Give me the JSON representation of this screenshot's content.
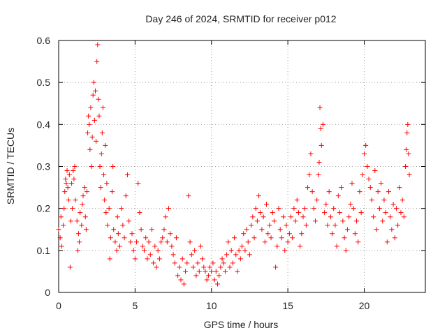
{
  "chart_data": {
    "type": "scatter",
    "title": "Day 246 of 2024, SRMTID for receiver p012",
    "xlabel": "GPS time / hours",
    "ylabel": "SRMTID / TECUs",
    "xlim": [
      0,
      24
    ],
    "ylim": [
      0,
      0.6
    ],
    "xticks": [
      0,
      5,
      10,
      15,
      20
    ],
    "xtick_labels": [
      "0",
      "5",
      "10",
      "15",
      "20"
    ],
    "yticks": [
      0,
      0.1,
      0.2,
      0.3,
      0.4,
      0.5,
      0.6
    ],
    "ytick_labels": [
      "0",
      "0.1",
      "0.2",
      "0.3",
      "0.4",
      "0.5",
      "0.6"
    ],
    "grid": true,
    "marker": "plus",
    "color": "#ff0000",
    "series": [
      {
        "name": "SRMTID",
        "points": [
          [
            0.0,
            0.15
          ],
          [
            0.1,
            0.13
          ],
          [
            0.15,
            0.18
          ],
          [
            0.2,
            0.11
          ],
          [
            0.3,
            0.16
          ],
          [
            0.35,
            0.2
          ],
          [
            0.4,
            0.24
          ],
          [
            0.45,
            0.27
          ],
          [
            0.5,
            0.26
          ],
          [
            0.55,
            0.29
          ],
          [
            0.6,
            0.25
          ],
          [
            0.65,
            0.22
          ],
          [
            0.7,
            0.28
          ],
          [
            0.75,
            0.06
          ],
          [
            0.8,
            0.17
          ],
          [
            0.85,
            0.26
          ],
          [
            0.9,
            0.2
          ],
          [
            0.95,
            0.29
          ],
          [
            1.0,
            0.27
          ],
          [
            1.05,
            0.3
          ],
          [
            1.1,
            0.22
          ],
          [
            1.2,
            0.17
          ],
          [
            1.25,
            0.1
          ],
          [
            1.3,
            0.14
          ],
          [
            1.35,
            0.12
          ],
          [
            1.4,
            0.19
          ],
          [
            1.5,
            0.16
          ],
          [
            1.55,
            0.21
          ],
          [
            1.6,
            0.23
          ],
          [
            1.7,
            0.25
          ],
          [
            1.75,
            0.18
          ],
          [
            1.8,
            0.15
          ],
          [
            1.85,
            0.24
          ],
          [
            1.9,
            0.38
          ],
          [
            1.95,
            0.42
          ],
          [
            2.0,
            0.4
          ],
          [
            2.05,
            0.34
          ],
          [
            2.1,
            0.44
          ],
          [
            2.15,
            0.3
          ],
          [
            2.2,
            0.37
          ],
          [
            2.25,
            0.47
          ],
          [
            2.3,
            0.5
          ],
          [
            2.35,
            0.41
          ],
          [
            2.4,
            0.48
          ],
          [
            2.45,
            0.36
          ],
          [
            2.5,
            0.55
          ],
          [
            2.55,
            0.59
          ],
          [
            2.6,
            0.46
          ],
          [
            2.65,
            0.42
          ],
          [
            2.7,
            0.3
          ],
          [
            2.75,
            0.25
          ],
          [
            2.8,
            0.33
          ],
          [
            2.85,
            0.38
          ],
          [
            2.9,
            0.44
          ],
          [
            2.95,
            0.28
          ],
          [
            3.0,
            0.22
          ],
          [
            3.05,
            0.35
          ],
          [
            3.1,
            0.19
          ],
          [
            3.15,
            0.26
          ],
          [
            3.2,
            0.16
          ],
          [
            3.3,
            0.2
          ],
          [
            3.35,
            0.08
          ],
          [
            3.4,
            0.13
          ],
          [
            3.5,
            0.24
          ],
          [
            3.55,
            0.3
          ],
          [
            3.6,
            0.15
          ],
          [
            3.7,
            0.12
          ],
          [
            3.8,
            0.1
          ],
          [
            3.85,
            0.18
          ],
          [
            3.9,
            0.14
          ],
          [
            4.0,
            0.11
          ],
          [
            4.1,
            0.2
          ],
          [
            4.2,
            0.16
          ],
          [
            4.3,
            0.13
          ],
          [
            4.4,
            0.23
          ],
          [
            4.5,
            0.28
          ],
          [
            4.6,
            0.17
          ],
          [
            4.7,
            0.12
          ],
          [
            4.8,
            0.14
          ],
          [
            4.9,
            0.1
          ],
          [
            5.0,
            0.08
          ],
          [
            5.1,
            0.12
          ],
          [
            5.2,
            0.26
          ],
          [
            5.3,
            0.19
          ],
          [
            5.4,
            0.15
          ],
          [
            5.5,
            0.11
          ],
          [
            5.6,
            0.1
          ],
          [
            5.7,
            0.13
          ],
          [
            5.8,
            0.08
          ],
          [
            5.9,
            0.12
          ],
          [
            6.0,
            0.09
          ],
          [
            6.1,
            0.15
          ],
          [
            6.2,
            0.07
          ],
          [
            6.3,
            0.11
          ],
          [
            6.4,
            0.06
          ],
          [
            6.5,
            0.1
          ],
          [
            6.6,
            0.08
          ],
          [
            6.7,
            0.12
          ],
          [
            6.8,
            0.13
          ],
          [
            6.9,
            0.15
          ],
          [
            7.0,
            0.18
          ],
          [
            7.1,
            0.12
          ],
          [
            7.2,
            0.2
          ],
          [
            7.3,
            0.14
          ],
          [
            7.4,
            0.11
          ],
          [
            7.5,
            0.09
          ],
          [
            7.6,
            0.07
          ],
          [
            7.7,
            0.13
          ],
          [
            7.8,
            0.04
          ],
          [
            7.9,
            0.06
          ],
          [
            8.0,
            0.03
          ],
          [
            8.1,
            0.08
          ],
          [
            8.2,
            0.02
          ],
          [
            8.3,
            0.05
          ],
          [
            8.4,
            0.07
          ],
          [
            8.5,
            0.23
          ],
          [
            8.6,
            0.12
          ],
          [
            8.7,
            0.09
          ],
          [
            8.8,
            0.06
          ],
          [
            8.9,
            0.1
          ],
          [
            9.0,
            0.04
          ],
          [
            9.1,
            0.07
          ],
          [
            9.2,
            0.05
          ],
          [
            9.3,
            0.11
          ],
          [
            9.4,
            0.08
          ],
          [
            9.5,
            0.06
          ],
          [
            9.6,
            0.05
          ],
          [
            9.7,
            0.03
          ],
          [
            9.8,
            0.04
          ],
          [
            9.9,
            0.06
          ],
          [
            10.0,
            0.05
          ],
          [
            10.1,
            0.07
          ],
          [
            10.2,
            0.03
          ],
          [
            10.3,
            0.05
          ],
          [
            10.4,
            0.02
          ],
          [
            10.5,
            0.04
          ],
          [
            10.6,
            0.06
          ],
          [
            10.7,
            0.08
          ],
          [
            10.8,
            0.07
          ],
          [
            10.9,
            0.05
          ],
          [
            11.0,
            0.09
          ],
          [
            11.1,
            0.12
          ],
          [
            11.2,
            0.06
          ],
          [
            11.3,
            0.1
          ],
          [
            11.4,
            0.07
          ],
          [
            11.5,
            0.13
          ],
          [
            11.6,
            0.09
          ],
          [
            11.7,
            0.05
          ],
          [
            11.8,
            0.1
          ],
          [
            11.9,
            0.08
          ],
          [
            12.0,
            0.11
          ],
          [
            12.1,
            0.14
          ],
          [
            12.2,
            0.1
          ],
          [
            12.3,
            0.15
          ],
          [
            12.4,
            0.12
          ],
          [
            12.5,
            0.09
          ],
          [
            12.6,
            0.16
          ],
          [
            12.7,
            0.18
          ],
          [
            12.8,
            0.13
          ],
          [
            12.9,
            0.2
          ],
          [
            13.0,
            0.17
          ],
          [
            13.1,
            0.23
          ],
          [
            13.2,
            0.19
          ],
          [
            13.3,
            0.15
          ],
          [
            13.4,
            0.18
          ],
          [
            13.5,
            0.12
          ],
          [
            13.6,
            0.21
          ],
          [
            13.7,
            0.14
          ],
          [
            13.8,
            0.16
          ],
          [
            13.9,
            0.13
          ],
          [
            14.0,
            0.19
          ],
          [
            14.1,
            0.17
          ],
          [
            14.2,
            0.06
          ],
          [
            14.3,
            0.11
          ],
          [
            14.4,
            0.2
          ],
          [
            14.5,
            0.15
          ],
          [
            14.6,
            0.13
          ],
          [
            14.7,
            0.18
          ],
          [
            14.8,
            0.1
          ],
          [
            14.9,
            0.16
          ],
          [
            15.0,
            0.12
          ],
          [
            15.1,
            0.14
          ],
          [
            15.2,
            0.18
          ],
          [
            15.3,
            0.13
          ],
          [
            15.4,
            0.2
          ],
          [
            15.5,
            0.17
          ],
          [
            15.6,
            0.22
          ],
          [
            15.7,
            0.19
          ],
          [
            15.8,
            0.11
          ],
          [
            15.9,
            0.14
          ],
          [
            16.0,
            0.18
          ],
          [
            16.1,
            0.2
          ],
          [
            16.2,
            0.16
          ],
          [
            16.3,
            0.25
          ],
          [
            16.4,
            0.28
          ],
          [
            16.5,
            0.33
          ],
          [
            16.6,
            0.24
          ],
          [
            16.7,
            0.2
          ],
          [
            16.8,
            0.17
          ],
          [
            16.9,
            0.22
          ],
          [
            17.0,
            0.28
          ],
          [
            17.05,
            0.31
          ],
          [
            17.1,
            0.44
          ],
          [
            17.15,
            0.39
          ],
          [
            17.2,
            0.35
          ],
          [
            17.3,
            0.4
          ],
          [
            17.4,
            0.19
          ],
          [
            17.5,
            0.21
          ],
          [
            17.6,
            0.16
          ],
          [
            17.7,
            0.24
          ],
          [
            17.8,
            0.18
          ],
          [
            17.9,
            0.14
          ],
          [
            18.0,
            0.2
          ],
          [
            18.1,
            0.16
          ],
          [
            18.2,
            0.11
          ],
          [
            18.3,
            0.23
          ],
          [
            18.4,
            0.19
          ],
          [
            18.5,
            0.25
          ],
          [
            18.6,
            0.17
          ],
          [
            18.7,
            0.13
          ],
          [
            18.8,
            0.1
          ],
          [
            18.9,
            0.15
          ],
          [
            19.0,
            0.18
          ],
          [
            19.1,
            0.21
          ],
          [
            19.2,
            0.26
          ],
          [
            19.3,
            0.2
          ],
          [
            19.4,
            0.14
          ],
          [
            19.5,
            0.17
          ],
          [
            19.6,
            0.12
          ],
          [
            19.7,
            0.24
          ],
          [
            19.8,
            0.19
          ],
          [
            19.9,
            0.28
          ],
          [
            20.0,
            0.33
          ],
          [
            20.1,
            0.35
          ],
          [
            20.2,
            0.3
          ],
          [
            20.3,
            0.27
          ],
          [
            20.4,
            0.25
          ],
          [
            20.5,
            0.22
          ],
          [
            20.6,
            0.18
          ],
          [
            20.7,
            0.29
          ],
          [
            20.8,
            0.15
          ],
          [
            20.9,
            0.24
          ],
          [
            21.0,
            0.2
          ],
          [
            21.1,
            0.26
          ],
          [
            21.2,
            0.17
          ],
          [
            21.3,
            0.22
          ],
          [
            21.4,
            0.19
          ],
          [
            21.5,
            0.12
          ],
          [
            21.6,
            0.24
          ],
          [
            21.7,
            0.18
          ],
          [
            21.8,
            0.15
          ],
          [
            21.9,
            0.21
          ],
          [
            22.0,
            0.13
          ],
          [
            22.1,
            0.2
          ],
          [
            22.2,
            0.16
          ],
          [
            22.3,
            0.25
          ],
          [
            22.4,
            0.19
          ],
          [
            22.5,
            0.22
          ],
          [
            22.6,
            0.18
          ],
          [
            22.7,
            0.3
          ],
          [
            22.75,
            0.34
          ],
          [
            22.8,
            0.38
          ],
          [
            22.85,
            0.4
          ],
          [
            22.9,
            0.33
          ],
          [
            22.95,
            0.28
          ]
        ]
      }
    ]
  }
}
